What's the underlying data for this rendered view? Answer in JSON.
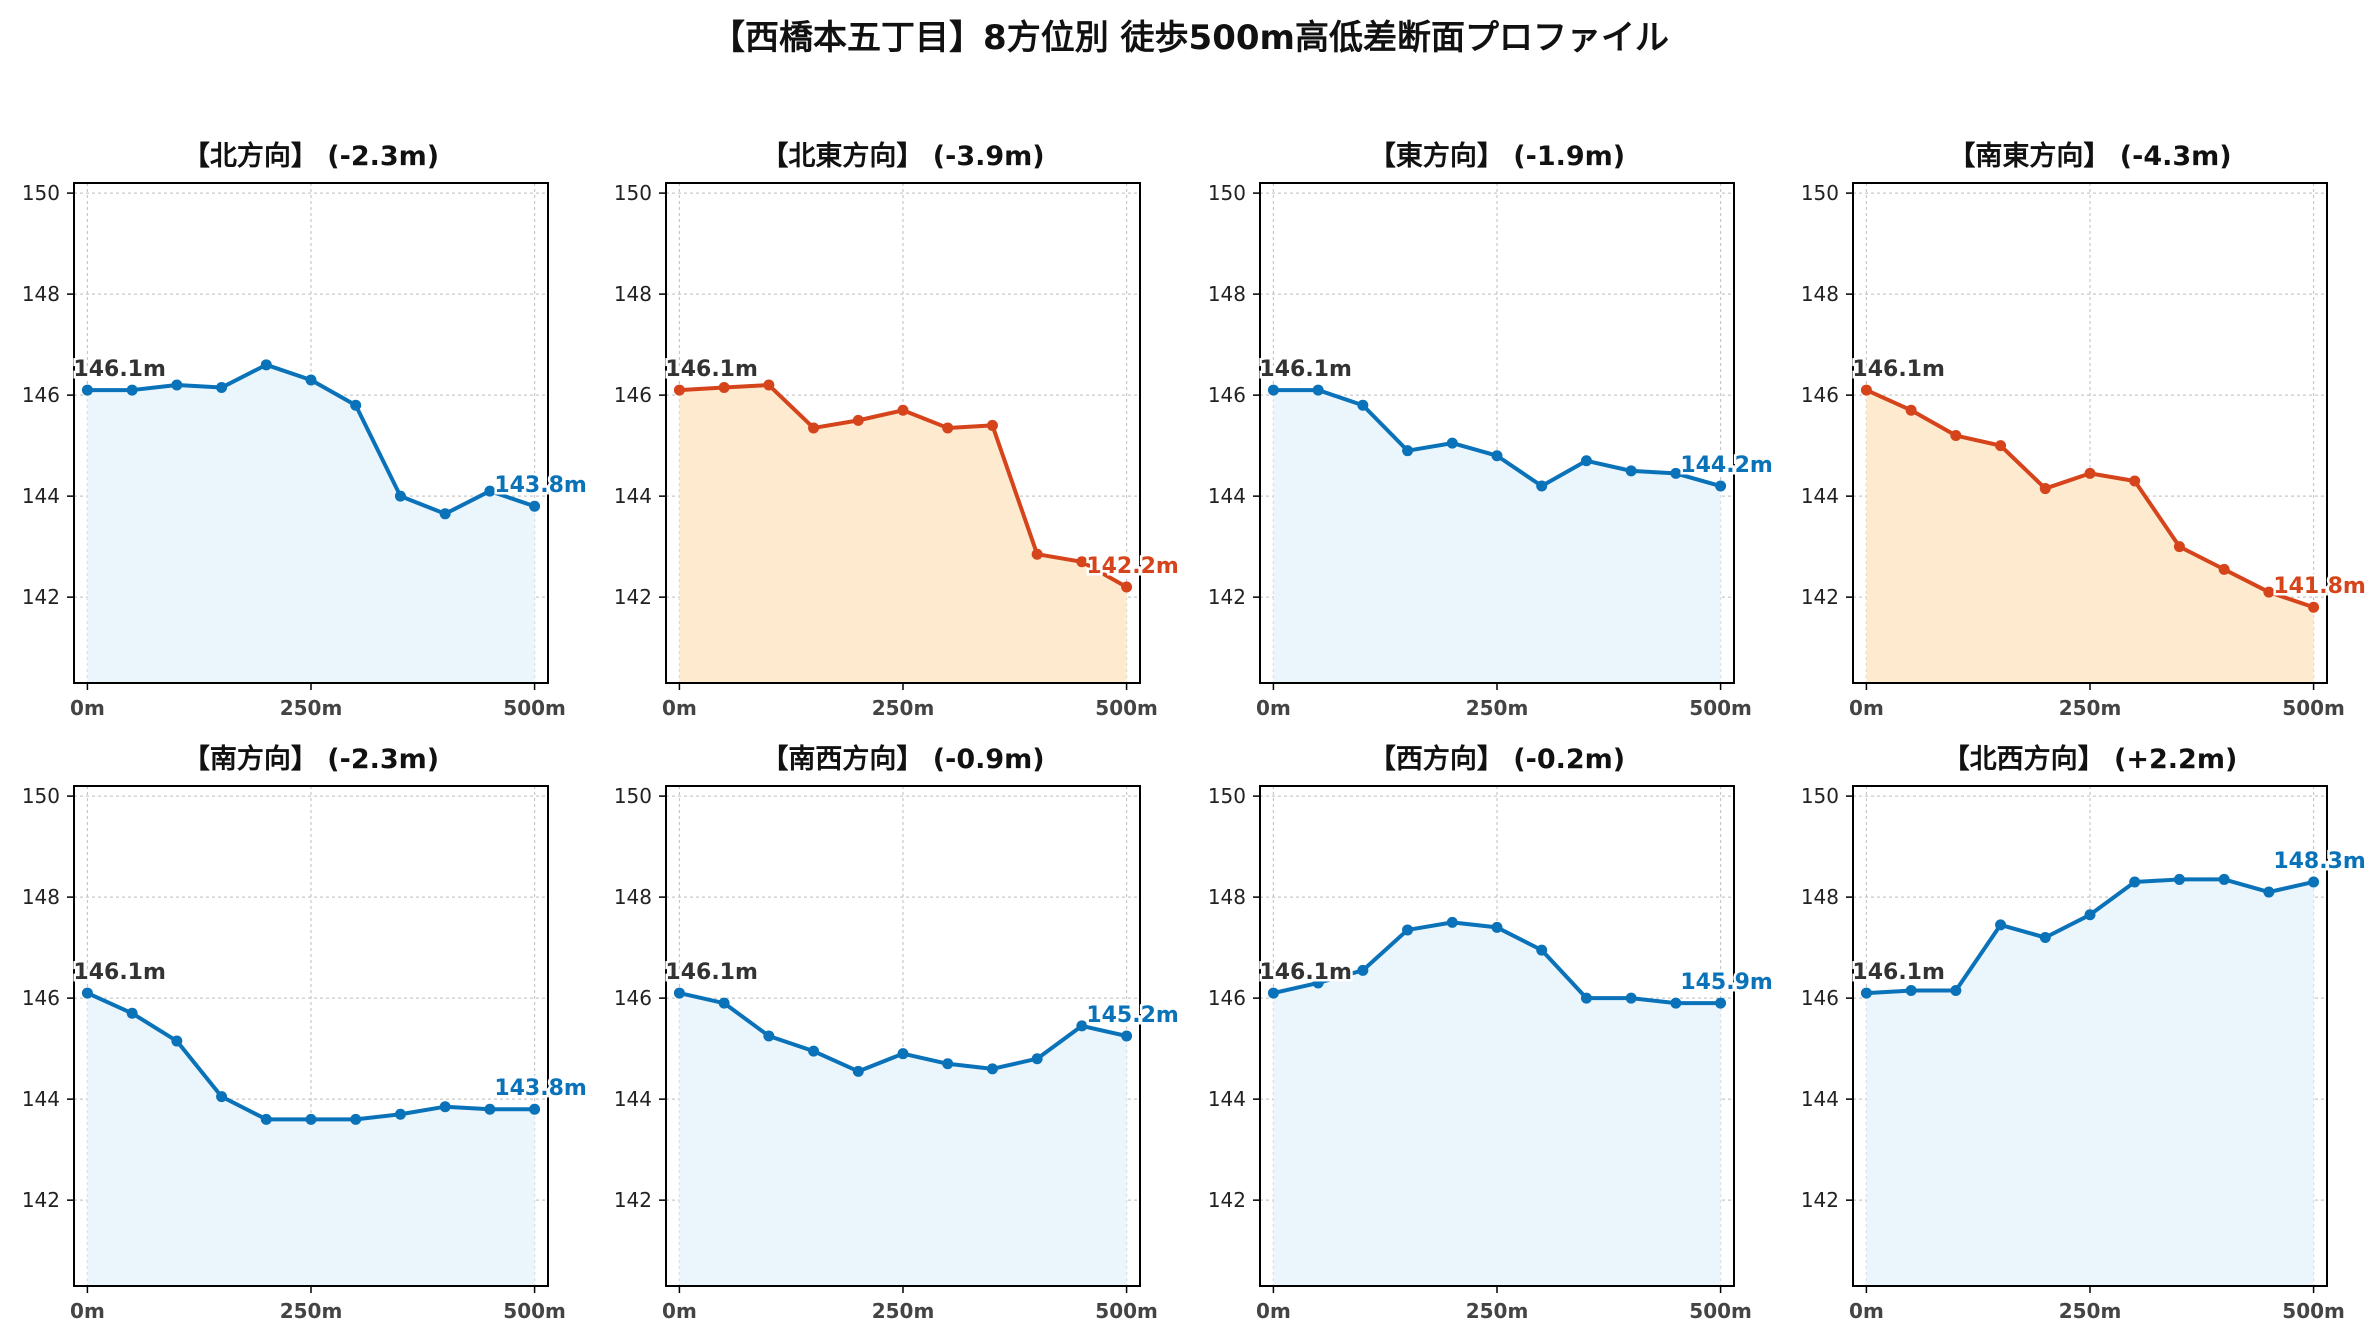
{
  "figure": {
    "title": "【西橋本五丁目】8方位別 徒歩500m高低差断面プロファイル"
  },
  "colors": {
    "up": "#0a72b8",
    "up_fill": "#eaf6fc",
    "down": "#d5441a",
    "down_fill": "#fdeacf",
    "start_label": "#333333",
    "grid": "#c8c8c8"
  },
  "chart_data": [
    {
      "type": "line",
      "title": "【北方向】 (-2.3m)",
      "x": [
        0,
        50,
        100,
        150,
        200,
        250,
        300,
        350,
        400,
        450,
        500
      ],
      "values": [
        146.1,
        146.1,
        146.2,
        146.15,
        146.6,
        146.3,
        145.8,
        144.0,
        143.65,
        144.1,
        143.8
      ],
      "trend": "up",
      "start_label": "146.1m",
      "end_label": "143.8m",
      "xticks": [
        "0m",
        "250m",
        "500m"
      ],
      "yticks": [
        "142",
        "144",
        "146",
        "148",
        "150"
      ],
      "xlim": [
        -15,
        515
      ],
      "ylim": [
        140.3,
        150.2
      ],
      "grid": true
    },
    {
      "type": "line",
      "title": "【北東方向】 (-3.9m)",
      "x": [
        0,
        50,
        100,
        150,
        200,
        250,
        300,
        350,
        400,
        450,
        500
      ],
      "values": [
        146.1,
        146.15,
        146.2,
        145.35,
        145.5,
        145.7,
        145.35,
        145.4,
        142.85,
        142.7,
        142.2
      ],
      "trend": "down",
      "start_label": "146.1m",
      "end_label": "142.2m",
      "xticks": [
        "0m",
        "250m",
        "500m"
      ],
      "yticks": [
        "142",
        "144",
        "146",
        "148",
        "150"
      ],
      "xlim": [
        -15,
        515
      ],
      "ylim": [
        140.3,
        150.2
      ],
      "grid": true
    },
    {
      "type": "line",
      "title": "【東方向】 (-1.9m)",
      "x": [
        0,
        50,
        100,
        150,
        200,
        250,
        300,
        350,
        400,
        450,
        500
      ],
      "values": [
        146.1,
        146.1,
        145.8,
        144.9,
        145.05,
        144.8,
        144.2,
        144.7,
        144.5,
        144.45,
        144.2
      ],
      "trend": "up",
      "start_label": "146.1m",
      "end_label": "144.2m",
      "xticks": [
        "0m",
        "250m",
        "500m"
      ],
      "yticks": [
        "142",
        "144",
        "146",
        "148",
        "150"
      ],
      "xlim": [
        -15,
        515
      ],
      "ylim": [
        140.3,
        150.2
      ],
      "grid": true
    },
    {
      "type": "line",
      "title": "【南東方向】 (-4.3m)",
      "x": [
        0,
        50,
        100,
        150,
        200,
        250,
        300,
        350,
        400,
        450,
        500
      ],
      "values": [
        146.1,
        145.7,
        145.2,
        145.0,
        144.15,
        144.45,
        144.3,
        143.0,
        142.55,
        142.1,
        141.8
      ],
      "trend": "down",
      "start_label": "146.1m",
      "end_label": "141.8m",
      "xticks": [
        "0m",
        "250m",
        "500m"
      ],
      "yticks": [
        "142",
        "144",
        "146",
        "148",
        "150"
      ],
      "xlim": [
        -15,
        515
      ],
      "ylim": [
        140.3,
        150.2
      ],
      "grid": true
    },
    {
      "type": "line",
      "title": "【南方向】 (-2.3m)",
      "x": [
        0,
        50,
        100,
        150,
        200,
        250,
        300,
        350,
        400,
        450,
        500
      ],
      "values": [
        146.1,
        145.7,
        145.15,
        144.05,
        143.6,
        143.6,
        143.6,
        143.7,
        143.85,
        143.8,
        143.8
      ],
      "trend": "up",
      "start_label": "146.1m",
      "end_label": "143.8m",
      "xticks": [
        "0m",
        "250m",
        "500m"
      ],
      "yticks": [
        "142",
        "144",
        "146",
        "148",
        "150"
      ],
      "xlim": [
        -15,
        515
      ],
      "ylim": [
        140.3,
        150.2
      ],
      "grid": true
    },
    {
      "type": "line",
      "title": "【南西方向】 (-0.9m)",
      "x": [
        0,
        50,
        100,
        150,
        200,
        250,
        300,
        350,
        400,
        450,
        500
      ],
      "values": [
        146.1,
        145.9,
        145.25,
        144.95,
        144.55,
        144.9,
        144.7,
        144.6,
        144.8,
        145.45,
        145.25
      ],
      "trend": "up",
      "start_label": "146.1m",
      "end_label": "145.2m",
      "xticks": [
        "0m",
        "250m",
        "500m"
      ],
      "yticks": [
        "142",
        "144",
        "146",
        "148",
        "150"
      ],
      "xlim": [
        -15,
        515
      ],
      "ylim": [
        140.3,
        150.2
      ],
      "grid": true
    },
    {
      "type": "line",
      "title": "【西方向】 (-0.2m)",
      "x": [
        0,
        50,
        100,
        150,
        200,
        250,
        300,
        350,
        400,
        450,
        500
      ],
      "values": [
        146.1,
        146.3,
        146.55,
        147.35,
        147.5,
        147.4,
        146.95,
        146.0,
        146.0,
        145.9,
        145.9
      ],
      "trend": "up",
      "start_label": "146.1m",
      "end_label": "145.9m",
      "xticks": [
        "0m",
        "250m",
        "500m"
      ],
      "yticks": [
        "142",
        "144",
        "146",
        "148",
        "150"
      ],
      "xlim": [
        -15,
        515
      ],
      "ylim": [
        140.3,
        150.2
      ],
      "grid": true
    },
    {
      "type": "line",
      "title": "【北西方向】 (+2.2m)",
      "x": [
        0,
        50,
        100,
        150,
        200,
        250,
        300,
        350,
        400,
        450,
        500
      ],
      "values": [
        146.1,
        146.15,
        146.15,
        147.45,
        147.2,
        147.65,
        148.3,
        148.35,
        148.35,
        148.1,
        148.3
      ],
      "trend": "up",
      "start_label": "146.1m",
      "end_label": "148.3m",
      "xticks": [
        "0m",
        "250m",
        "500m"
      ],
      "yticks": [
        "142",
        "144",
        "146",
        "148",
        "150"
      ],
      "xlim": [
        -15,
        515
      ],
      "ylim": [
        140.3,
        150.2
      ],
      "grid": true
    }
  ]
}
